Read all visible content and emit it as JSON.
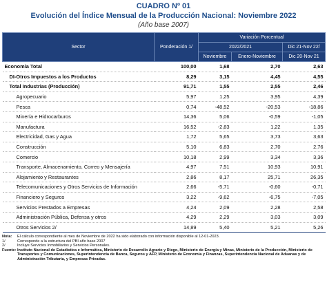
{
  "header": {
    "cuadro": "CUADRO Nº 01",
    "title": "Evolución del Índice Mensual de la Producción Nacional: Noviembre 2022",
    "subtitle": "(Año base 2007)"
  },
  "table": {
    "head": {
      "sector": "Sector",
      "weight": "Ponderación 1/",
      "variation": "Variación Porcentual",
      "period": "2022/2021",
      "dic_top": "Dic 21-Nov 22/",
      "dic_bottom": "Dic 20-Nov 21",
      "month": "Noviembre",
      "ytd": "Enero-Noviembre"
    },
    "rows": [
      [
        "Economía Total",
        "100,00",
        "1,68",
        "2,70",
        "2,63"
      ],
      [
        "DI-Otros Impuestos a los Productos",
        "8,29",
        "3,15",
        "4,45",
        "4,55"
      ],
      [
        "Total  Industrias (Producción)",
        "91,71",
        "1,55",
        "2,55",
        "2,46"
      ],
      [
        "Agropecuario",
        "5,97",
        "1,25",
        "3,95",
        "4,39"
      ],
      [
        "Pesca",
        "0,74",
        "-48,52",
        "-20,53",
        "-18,86"
      ],
      [
        "Minería e Hidrocarburos",
        "14,36",
        "5,06",
        "-0,59",
        "-1,05"
      ],
      [
        "Manufactura",
        "16,52",
        "-2,83",
        "1,22",
        "1,35"
      ],
      [
        "Electricidad, Gas y Agua",
        "1,72",
        "5,65",
        "3,73",
        "3,63"
      ],
      [
        "Construcción",
        "5,10",
        "6,83",
        "2,70",
        "2,76"
      ],
      [
        "Comercio",
        "10,18",
        "2,99",
        "3,34",
        "3,36"
      ],
      [
        "Transporte, Almacenamiento, Correo y Mensajería",
        "4,97",
        "7,51",
        "10,93",
        "10,91"
      ],
      [
        "Alojamiento y Restaurantes",
        "2,86",
        "8,17",
        "25,71",
        "26,35"
      ],
      [
        "Telecomunicaciones y Otros Servicios de Información",
        "2,66",
        "-5,71",
        "-0,60",
        "-0,71"
      ],
      [
        "Financiero y Seguros",
        "3,22",
        "-9,62",
        "-6,75",
        "-7,05"
      ],
      [
        "Servicios Prestados a Empresas",
        "4,24",
        "2,09",
        "2,28",
        "2,58"
      ],
      [
        "Administración Pública, Defensa y otros",
        "4,29",
        "2,29",
        "3,03",
        "3,09"
      ],
      [
        "Otros Servicios 2/",
        "14,89",
        "5,40",
        "5,21",
        "5,26"
      ]
    ]
  },
  "notes": [
    {
      "label": "Nota:",
      "text": "El cálculo correspondiente al mes de Noviembre de 2022 ha sido elaborado con información disponible al 12-01-2023."
    },
    {
      "label": "1/",
      "text": "Corresponde a la estructura del PBI año base 2007"
    },
    {
      "label": "2/",
      "text": "Incluye Servicios Inmobiliarios y Servicios Personales."
    },
    {
      "label": "Fuente:",
      "text": "Instituto Nacional de Estadística e Informática, Ministerio de Desarrollo Agrario y Riego, Ministerio de Energía y Minas, Ministerio de la Producción, Ministerio de Transportes y Comunicaciones, Superintendencia de Banca, Seguros y AFP, Ministerio de Economía y Finanzas, Superintendencia Nacional de Aduanas y de Administración Tributaria, y Empresas Privadas."
    }
  ]
}
